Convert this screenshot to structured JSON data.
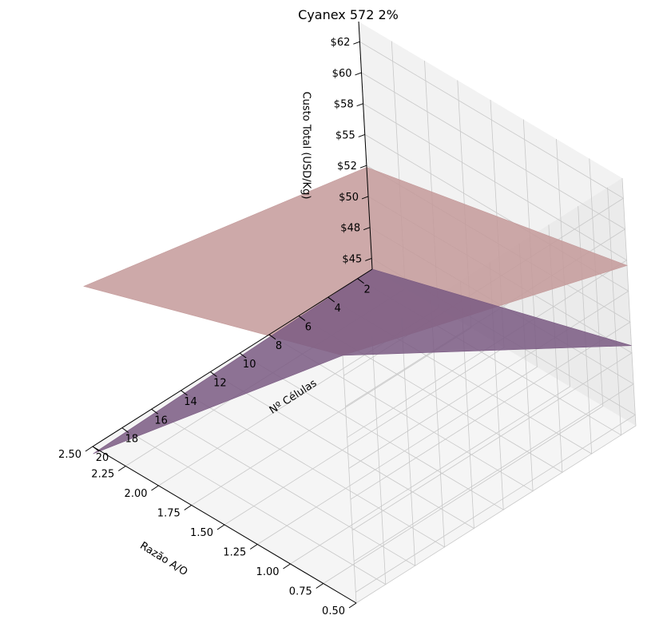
{
  "chart_data": {
    "type": "surface",
    "title": "Cyanex 572 2%",
    "xlabel": "Razão A/O",
    "ylabel": "Nº Células",
    "zlabel": "Custo Total (USD/Kg)",
    "x_ticks": [
      "0.50",
      "0.75",
      "1.00",
      "1.25",
      "1.50",
      "1.75",
      "2.00",
      "2.25",
      "2.50"
    ],
    "y_ticks": [
      "2",
      "4",
      "6",
      "8",
      "10",
      "12",
      "14",
      "16",
      "18",
      "20"
    ],
    "z_ticks": [
      "$45",
      "$48",
      "$50",
      "$52",
      "$55",
      "$58",
      "$60",
      "$62"
    ],
    "xlim": [
      0.5,
      2.5
    ],
    "ylim": [
      1,
      20
    ],
    "zlim": [
      45,
      62
    ],
    "grid": true,
    "series": [
      {
        "color": "#c49a9a",
        "corners": [
          {
            "x": 0.5,
            "y": 1,
            "z": 56.0
          },
          {
            "x": 0.5,
            "y": 20,
            "z": 62.0
          },
          {
            "x": 2.5,
            "y": 20,
            "z": 56.0
          },
          {
            "x": 2.5,
            "y": 1,
            "z": 52.0
          }
        ]
      },
      {
        "color": "#7a5a82",
        "corners": [
          {
            "x": 0.5,
            "y": 1,
            "z": 50.5
          },
          {
            "x": 0.5,
            "y": 20,
            "z": 62.0
          },
          {
            "x": 2.5,
            "y": 20,
            "z": 44.5
          },
          {
            "x": 2.5,
            "y": 1,
            "z": 45.0
          }
        ]
      }
    ]
  }
}
